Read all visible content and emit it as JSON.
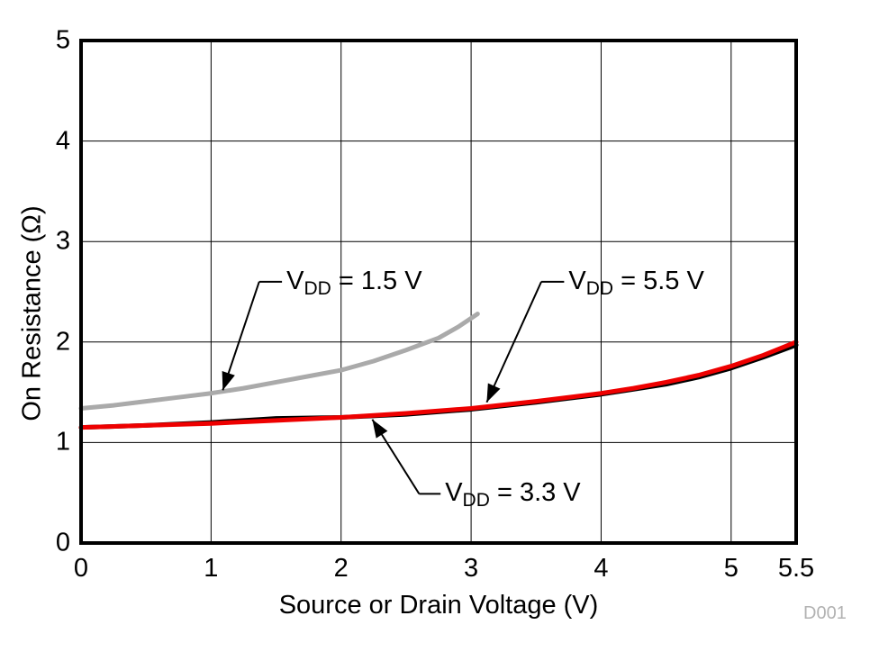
{
  "watermark": {
    "text": "D001"
  },
  "chart_data": {
    "type": "line",
    "title": "",
    "xlabel": "Source or Drain Voltage (V)",
    "ylabel": "On Resistance (Ω)",
    "xlim": [
      0,
      5.5
    ],
    "ylim": [
      0,
      5
    ],
    "xticks": [
      0,
      1,
      2,
      3,
      4,
      5,
      5.5
    ],
    "yticks": [
      0,
      1,
      2,
      3,
      4,
      5
    ],
    "grid": true,
    "legend_position": "inline-annotations",
    "series": [
      {
        "name": "VDD = 1.5 V",
        "color": "#aaaaaa",
        "width": 5,
        "x": [
          0,
          0.25,
          0.5,
          0.75,
          1.0,
          1.25,
          1.5,
          1.75,
          2.0,
          2.25,
          2.5,
          2.75,
          2.9,
          3.05
        ],
        "y": [
          1.34,
          1.37,
          1.41,
          1.45,
          1.49,
          1.54,
          1.6,
          1.66,
          1.72,
          1.81,
          1.92,
          2.04,
          2.15,
          2.28
        ]
      },
      {
        "name": "VDD = 5.5 V",
        "color": "#000000",
        "width": 5,
        "x": [
          0,
          0.5,
          1,
          1.5,
          2,
          2.5,
          3,
          3.5,
          4,
          4.25,
          4.5,
          4.75,
          5,
          5.25,
          5.5
        ],
        "y": [
          1.15,
          1.17,
          1.2,
          1.24,
          1.25,
          1.28,
          1.33,
          1.4,
          1.48,
          1.53,
          1.58,
          1.65,
          1.74,
          1.85,
          1.97
        ]
      },
      {
        "name": "VDD = 3.3 V",
        "color": "#ee0000",
        "width": 5,
        "x": [
          0,
          0.5,
          1,
          1.5,
          2,
          2.5,
          3,
          3.5,
          4,
          4.25,
          4.5,
          4.75,
          5,
          5.25,
          5.5
        ],
        "y": [
          1.15,
          1.17,
          1.19,
          1.22,
          1.25,
          1.29,
          1.34,
          1.41,
          1.49,
          1.54,
          1.6,
          1.67,
          1.76,
          1.87,
          2.0
        ]
      }
    ],
    "annotations": [
      {
        "label": {
          "pre": "V",
          "sub": "DD",
          "post": " = 1.5 V"
        },
        "text_at": {
          "x": 1.58,
          "y": 2.6
        },
        "elbow": {
          "x": 1.37,
          "y": 2.6
        },
        "tip": {
          "x": 1.09,
          "y": 1.52
        }
      },
      {
        "label": {
          "pre": "V",
          "sub": "DD",
          "post": " = 5.5 V"
        },
        "text_at": {
          "x": 3.75,
          "y": 2.6
        },
        "elbow": {
          "x": 3.54,
          "y": 2.6
        },
        "tip": {
          "x": 3.12,
          "y": 1.4
        }
      },
      {
        "label": {
          "pre": "V",
          "sub": "DD",
          "post": " = 3.3 V"
        },
        "text_at": {
          "x": 2.8,
          "y": 0.49
        },
        "elbow": {
          "x": 2.6,
          "y": 0.49
        },
        "tip": {
          "x": 2.24,
          "y": 1.23
        }
      }
    ]
  }
}
